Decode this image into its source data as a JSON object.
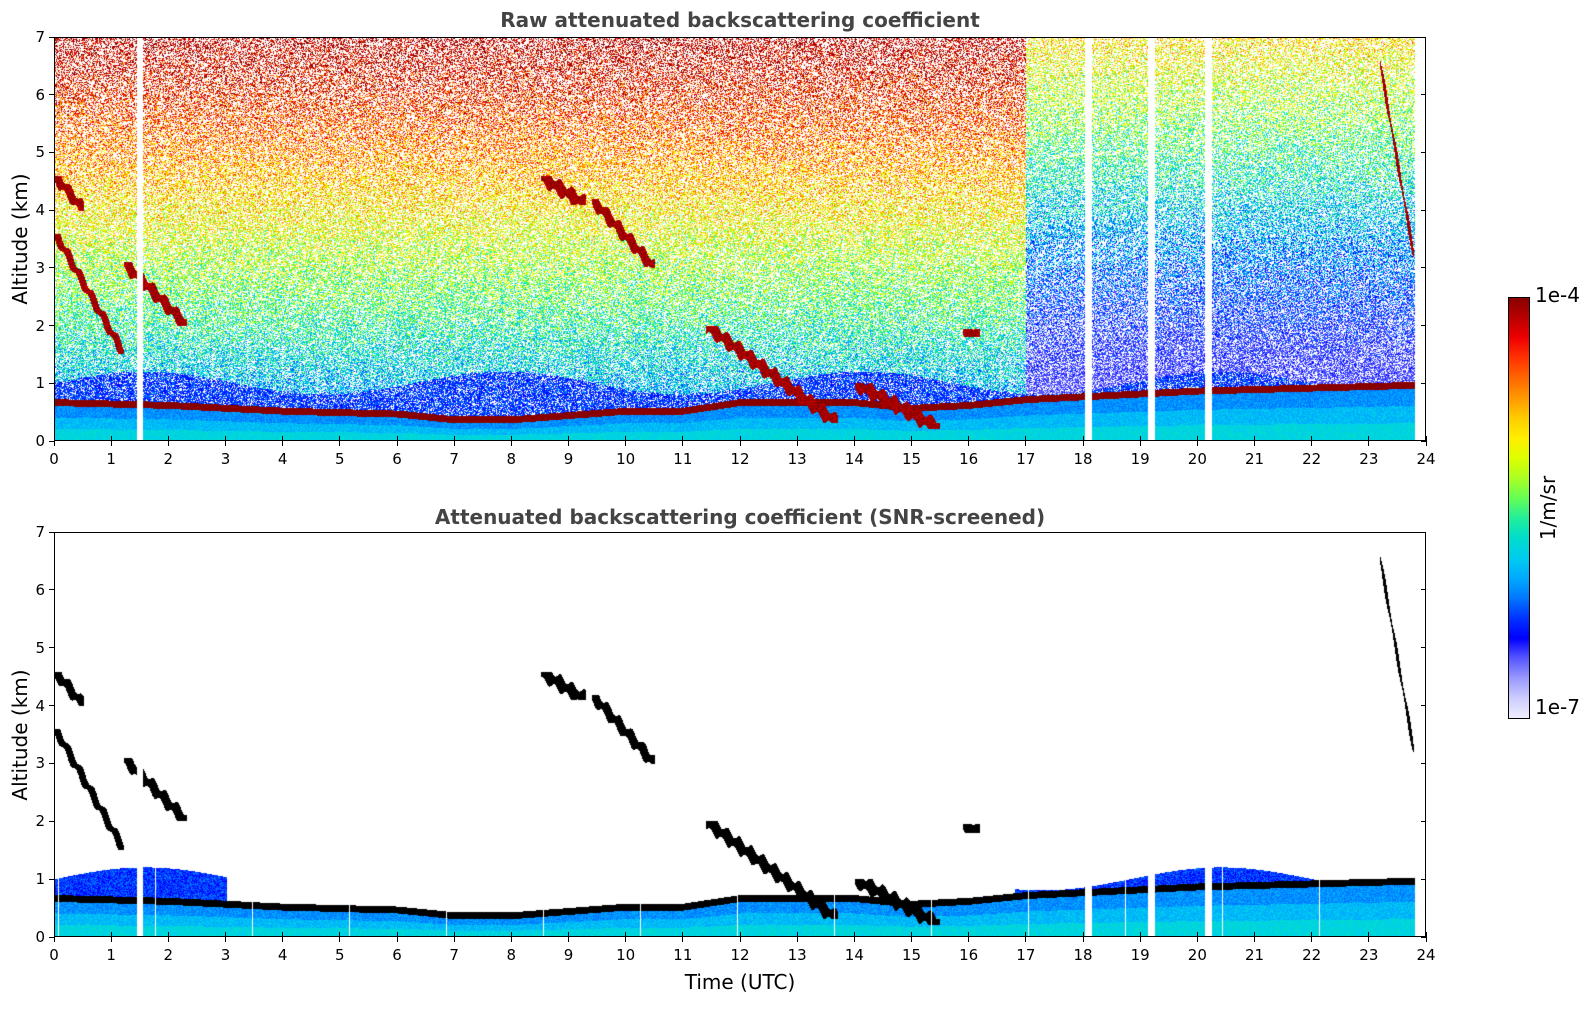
{
  "chart_data": [
    {
      "type": "heatmap",
      "title": "Raw attenuated backscattering coefficient",
      "xlabel": "",
      "ylabel": "Altitude (km)",
      "xlim": [
        0,
        24
      ],
      "ylim": [
        0,
        7
      ],
      "x_ticks": [
        "0",
        "1",
        "2",
        "3",
        "4",
        "5",
        "6",
        "7",
        "8",
        "9",
        "10",
        "11",
        "12",
        "13",
        "14",
        "15",
        "16",
        "17",
        "18",
        "19",
        "20",
        "21",
        "22",
        "23",
        "24"
      ],
      "y_ticks": [
        "0",
        "1",
        "2",
        "3",
        "4",
        "5",
        "6",
        "7"
      ],
      "data_gaps_utc": [
        1.48,
        18.1,
        19.2,
        20.2
      ],
      "boundary_layer_top_km": [
        [
          0,
          0.6
        ],
        [
          2,
          0.55
        ],
        [
          4,
          0.45
        ],
        [
          6,
          0.4
        ],
        [
          7,
          0.3
        ],
        [
          8,
          0.3
        ],
        [
          10,
          0.45
        ],
        [
          11,
          0.45
        ],
        [
          12,
          0.6
        ],
        [
          14,
          0.6
        ],
        [
          15,
          0.5
        ],
        [
          16,
          0.55
        ],
        [
          17,
          0.65
        ],
        [
          20,
          0.8
        ],
        [
          23.8,
          0.9
        ]
      ],
      "cloud_layers_km": [
        {
          "t": [
            0.0,
            0.5
          ],
          "alt": [
            4.0,
            4.6
          ]
        },
        {
          "t": [
            0.0,
            1.2
          ],
          "alt": [
            1.5,
            3.6
          ]
        },
        {
          "t": [
            1.2,
            2.3
          ],
          "alt": [
            2.0,
            3.1
          ]
        },
        {
          "t": [
            8.5,
            9.3
          ],
          "alt": [
            4.1,
            4.6
          ]
        },
        {
          "t": [
            9.4,
            10.5
          ],
          "alt": [
            3.0,
            4.2
          ]
        },
        {
          "t": [
            11.4,
            13.7
          ],
          "alt": [
            0.3,
            2.0
          ]
        },
        {
          "t": [
            14.0,
            15.5
          ],
          "alt": [
            0.2,
            1.0
          ]
        },
        {
          "t": [
            15.9,
            16.2
          ],
          "alt": [
            1.8,
            1.95
          ]
        },
        {
          "t": [
            23.2,
            23.8
          ],
          "alt": [
            3.2,
            6.6
          ]
        }
      ]
    },
    {
      "type": "heatmap",
      "title": "Attenuated backscattering coefficient (SNR-screened)",
      "xlabel": "Time (UTC)",
      "ylabel": "Altitude (km)",
      "xlim": [
        0,
        24
      ],
      "ylim": [
        0,
        7
      ],
      "x_ticks": [
        "0",
        "1",
        "2",
        "3",
        "4",
        "5",
        "6",
        "7",
        "8",
        "9",
        "10",
        "11",
        "12",
        "13",
        "14",
        "15",
        "16",
        "17",
        "18",
        "19",
        "20",
        "21",
        "22",
        "23",
        "24"
      ],
      "y_ticks": [
        "0",
        "1",
        "2",
        "3",
        "4",
        "5",
        "6",
        "7"
      ]
    }
  ],
  "colorbar": {
    "top_label": "1e-4",
    "bottom_label": "1e-7",
    "unit_label": "1/m/sr",
    "colors": [
      "#eeeeff",
      "#ccccff",
      "#9999ff",
      "#5555ff",
      "#0000ff",
      "#0033ff",
      "#0077ff",
      "#00aaff",
      "#00ccee",
      "#00ddcc",
      "#22ee99",
      "#66ff55",
      "#aaff22",
      "#ddff00",
      "#ffee00",
      "#ffcc00",
      "#ff9900",
      "#ff6600",
      "#ff3300",
      "#ee0000",
      "#bb0000",
      "#880000"
    ]
  }
}
